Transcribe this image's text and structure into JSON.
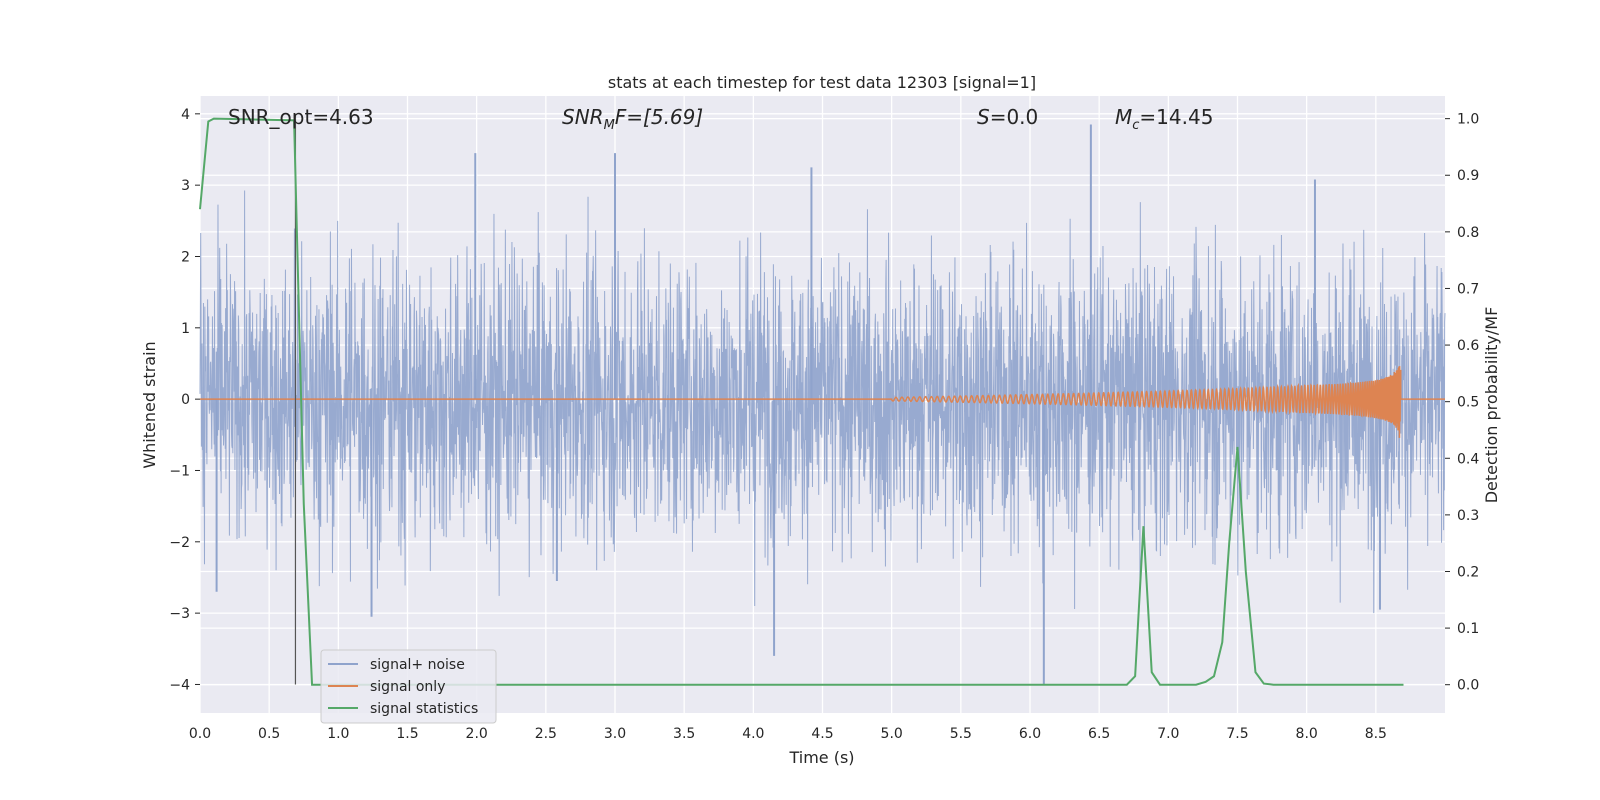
{
  "chart_data": {
    "type": "line",
    "title": "stats at each timestep for test data 12303 [signal=1]",
    "xlabel": "Time (s)",
    "ylabel": "Whitened strain",
    "y2label": "Detection probability/MF",
    "xlim": [
      0.0,
      9.0
    ],
    "ylim": [
      -4.4,
      4.25
    ],
    "y2lim": [
      -0.05,
      1.04
    ],
    "xticks": [
      "0.0",
      "0.5",
      "1.0",
      "1.5",
      "2.0",
      "2.5",
      "3.0",
      "3.5",
      "4.0",
      "4.5",
      "5.0",
      "5.5",
      "6.0",
      "6.5",
      "7.0",
      "7.5",
      "8.0",
      "8.5"
    ],
    "yticks": [
      "4",
      "3",
      "2",
      "1",
      "0",
      "−1",
      "−2",
      "−3",
      "−4"
    ],
    "y2ticks": [
      "1.0",
      "0.9",
      "0.8",
      "0.7",
      "0.6",
      "0.5",
      "0.4",
      "0.3",
      "0.2",
      "0.1",
      "0.0"
    ],
    "grid": true,
    "legend_position": "lower-left",
    "annotations": {
      "snr_opt": "SNR_opt=4.63",
      "snr_mf_main": "SNR",
      "snr_mf_sub": "M",
      "snr_mf_rest": "F=[5.69]",
      "s_main": "S",
      "s_rest": "=0.0",
      "mc_main": "M",
      "mc_sub": "c",
      "mc_rest": "=14.45"
    },
    "vline_x": 0.69,
    "series": [
      {
        "name": "signal+ noise",
        "color": "#8fa3cc",
        "noise_envelope": {
          "typical_abs": 1.6,
          "max": 3.9,
          "min": -4.0
        },
        "spikes": [
          {
            "x": 1.99,
            "y": 3.45
          },
          {
            "x": 3.0,
            "y": 3.45
          },
          {
            "x": 4.42,
            "y": 3.25
          },
          {
            "x": 6.44,
            "y": 3.85
          },
          {
            "x": 8.06,
            "y": 3.08
          },
          {
            "x": 4.15,
            "y": -3.6
          },
          {
            "x": 1.24,
            "y": -3.05
          },
          {
            "x": 6.1,
            "y": -4.0
          },
          {
            "x": 8.53,
            "y": -2.95
          },
          {
            "x": 0.12,
            "y": -2.7
          },
          {
            "x": 2.58,
            "y": -2.55
          }
        ]
      },
      {
        "name": "signal only",
        "color": "#dd8452",
        "chirp": {
          "start": 5.0,
          "end": 8.68,
          "max_amp": 0.7
        }
      },
      {
        "name": "signal statistics",
        "color": "#55a868",
        "axis": "right",
        "x": [
          0.0,
          0.06,
          0.1,
          0.68,
          0.75,
          0.81,
          0.9,
          6.7,
          6.76,
          6.82,
          6.88,
          6.94,
          7.2,
          7.27,
          7.33,
          7.39,
          7.44,
          7.5,
          7.56,
          7.63,
          7.69,
          7.76,
          8.0,
          8.7
        ],
        "y": [
          0.84,
          0.995,
          1.0,
          0.997,
          0.32,
          0.0,
          0.0,
          0.0,
          0.015,
          0.28,
          0.022,
          0.0,
          0.0,
          0.005,
          0.015,
          0.075,
          0.25,
          0.42,
          0.2,
          0.022,
          0.002,
          0.0,
          0.0,
          0.0
        ]
      }
    ]
  }
}
